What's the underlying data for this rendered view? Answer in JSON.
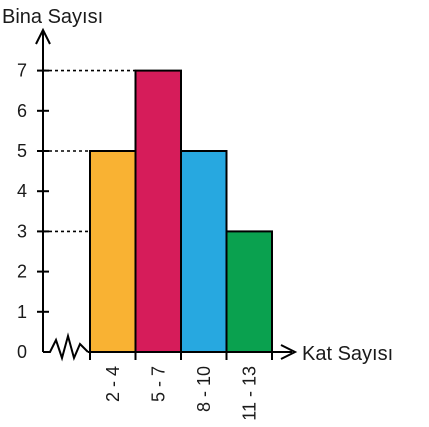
{
  "chart_data": {
    "type": "bar",
    "ylabel": "Bina Sayısı",
    "xlabel": "Kat Sayısı",
    "categories": [
      "2 - 4",
      "5 - 7",
      "8 - 10",
      "11 - 13"
    ],
    "values": [
      5,
      7,
      5,
      3
    ],
    "bar_colors": [
      "#F9B233",
      "#D61C5A",
      "#27A8E0",
      "#0AA14F"
    ],
    "ylim": [
      0,
      7
    ],
    "yticks": [
      "0",
      "1",
      "2",
      "3",
      "4",
      "5",
      "6",
      "7"
    ],
    "grid": false,
    "guide_lines_dotted_at": [
      3,
      5,
      7
    ],
    "axis_break": true
  }
}
